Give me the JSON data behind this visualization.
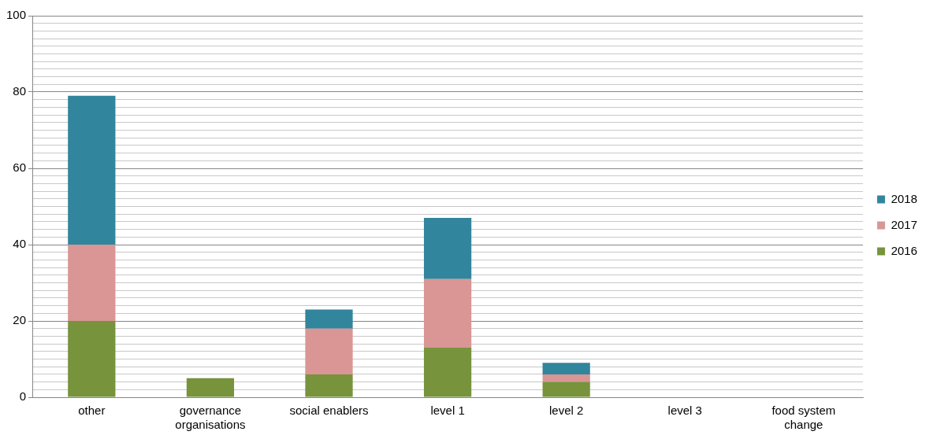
{
  "chart_data": {
    "type": "bar",
    "stacked": true,
    "categories": [
      "other",
      "governance organisations",
      "social enablers",
      "level 1",
      "level 2",
      "level 3",
      "food system change"
    ],
    "series": [
      {
        "name": "2016",
        "color": "#77933c",
        "values": [
          20,
          5,
          6,
          13,
          4,
          0,
          0
        ]
      },
      {
        "name": "2017",
        "color": "#d99694",
        "values": [
          20,
          0,
          12,
          18,
          2,
          0,
          0
        ]
      },
      {
        "name": "2018",
        "color": "#31859c",
        "values": [
          39,
          0,
          5,
          16,
          3,
          0,
          0
        ]
      }
    ],
    "ylim": [
      0,
      100
    ],
    "yticks": [
      0,
      {
        "value": 2,
        "label": null
      },
      {
        "value": 4,
        "label": null
      },
      {
        "value": 6,
        "label": null
      },
      {
        "value": 8,
        "label": null
      },
      {
        "value": 10,
        "label": null
      },
      {
        "value": 12,
        "label": null
      },
      {
        "value": 14,
        "label": null
      },
      {
        "value": 16,
        "label": null
      },
      {
        "value": 18,
        "label": null
      },
      20,
      {
        "value": 22,
        "label": null
      },
      {
        "value": 24,
        "label": null
      },
      {
        "value": 26,
        "label": null
      },
      {
        "value": 28,
        "label": null
      },
      {
        "value": 30,
        "label": null
      },
      {
        "value": 32,
        "label": null
      },
      {
        "value": 34,
        "label": null
      },
      {
        "value": 36,
        "label": null
      },
      {
        "value": 38,
        "label": null
      },
      40,
      {
        "value": 42,
        "label": null
      },
      {
        "value": 44,
        "label": null
      },
      {
        "value": 46,
        "label": null
      },
      {
        "value": 48,
        "label": null
      },
      {
        "value": 50,
        "label": null
      },
      {
        "value": 52,
        "label": null
      },
      {
        "value": 54,
        "label": null
      },
      {
        "value": 56,
        "label": null
      },
      {
        "value": 58,
        "label": null
      },
      60,
      {
        "value": 62,
        "label": null
      },
      {
        "value": 64,
        "label": null
      },
      {
        "value": 66,
        "label": null
      },
      {
        "value": 68,
        "label": null
      },
      {
        "value": 70,
        "label": null
      },
      {
        "value": 72,
        "label": null
      },
      {
        "value": 74,
        "label": null
      },
      {
        "value": 76,
        "label": null
      },
      {
        "value": 78,
        "label": null
      },
      80,
      {
        "value": 82,
        "label": null
      },
      {
        "value": 84,
        "label": null
      },
      {
        "value": 86,
        "label": null
      },
      {
        "value": 88,
        "label": null
      },
      {
        "value": 90,
        "label": null
      },
      {
        "value": 92,
        "label": null
      },
      {
        "value": 94,
        "label": null
      },
      {
        "value": 96,
        "label": null
      },
      {
        "value": 98,
        "label": null
      },
      100
    ],
    "grid": "y",
    "legend": "right"
  }
}
